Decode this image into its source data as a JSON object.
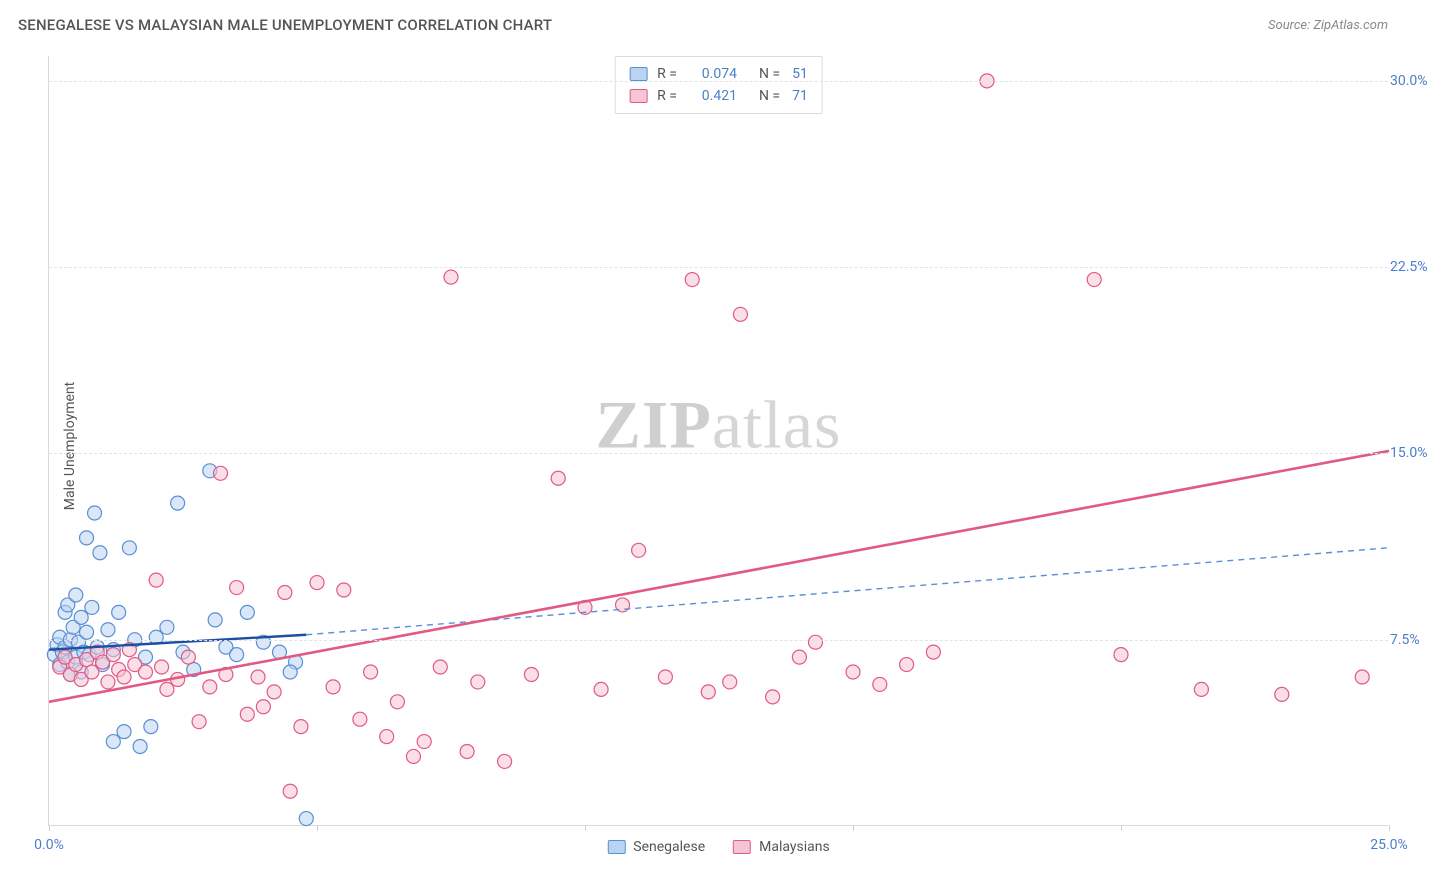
{
  "header": {
    "title": "SENEGALESE VS MALAYSIAN MALE UNEMPLOYMENT CORRELATION CHART",
    "source_prefix": "Source: ",
    "source_name": "ZipAtlas.com"
  },
  "watermark": {
    "bold": "ZIP",
    "rest": "atlas"
  },
  "chart": {
    "type": "scatter",
    "ylabel": "Male Unemployment",
    "xlim": [
      0,
      25
    ],
    "ylim": [
      0,
      31
    ],
    "yticks": [
      7.5,
      15.0,
      22.5,
      30.0
    ],
    "ytick_labels": [
      "7.5%",
      "15.0%",
      "22.5%",
      "30.0%"
    ],
    "xticks": [
      0,
      5,
      10,
      15,
      20,
      25
    ],
    "xtick_labels": {
      "0": "0.0%",
      "25": "25.0%"
    },
    "grid_color": "#e3e3e3",
    "axis_color": "#d9d9d9",
    "background_color": "#ffffff",
    "tick_label_color": "#4a7fc9",
    "marker_radius": 7,
    "marker_stroke_width": 1.2,
    "series": [
      {
        "name": "Senegalese",
        "fill": "#b9d3f0",
        "stroke": "#5a8fd6",
        "fill_opacity": 0.55,
        "R": "0.074",
        "N": "51",
        "trend_solid": {
          "x1": 0,
          "y1": 7.1,
          "x2": 4.8,
          "y2": 7.7,
          "color": "#1c4fa3",
          "width": 2.4
        },
        "trend_dashed": {
          "x1": 4.8,
          "y1": 7.7,
          "x2": 25,
          "y2": 11.2,
          "color": "#5a8fd6",
          "width": 1.4,
          "dash": "6,5"
        },
        "points": [
          [
            0.1,
            6.9
          ],
          [
            0.15,
            7.3
          ],
          [
            0.2,
            6.5
          ],
          [
            0.2,
            7.6
          ],
          [
            0.25,
            7.0
          ],
          [
            0.3,
            8.6
          ],
          [
            0.3,
            7.2
          ],
          [
            0.35,
            6.6
          ],
          [
            0.35,
            8.9
          ],
          [
            0.4,
            6.1
          ],
          [
            0.4,
            7.5
          ],
          [
            0.45,
            8.0
          ],
          [
            0.5,
            9.3
          ],
          [
            0.5,
            6.8
          ],
          [
            0.55,
            7.4
          ],
          [
            0.6,
            8.4
          ],
          [
            0.6,
            6.2
          ],
          [
            0.65,
            7.0
          ],
          [
            0.7,
            11.6
          ],
          [
            0.7,
            7.8
          ],
          [
            0.75,
            6.9
          ],
          [
            0.8,
            8.8
          ],
          [
            0.85,
            12.6
          ],
          [
            0.9,
            7.2
          ],
          [
            0.95,
            11.0
          ],
          [
            1.0,
            6.5
          ],
          [
            1.1,
            7.9
          ],
          [
            1.2,
            3.4
          ],
          [
            1.2,
            7.1
          ],
          [
            1.3,
            8.6
          ],
          [
            1.4,
            3.8
          ],
          [
            1.5,
            11.2
          ],
          [
            1.6,
            7.5
          ],
          [
            1.7,
            3.2
          ],
          [
            1.8,
            6.8
          ],
          [
            1.9,
            4.0
          ],
          [
            2.0,
            7.6
          ],
          [
            2.2,
            8.0
          ],
          [
            2.4,
            13.0
          ],
          [
            2.5,
            7.0
          ],
          [
            2.7,
            6.3
          ],
          [
            3.0,
            14.3
          ],
          [
            3.1,
            8.3
          ],
          [
            3.3,
            7.2
          ],
          [
            3.5,
            6.9
          ],
          [
            3.7,
            8.6
          ],
          [
            4.0,
            7.4
          ],
          [
            4.3,
            7.0
          ],
          [
            4.6,
            6.6
          ],
          [
            4.8,
            0.3
          ],
          [
            4.5,
            6.2
          ]
        ]
      },
      {
        "name": "Malaysians",
        "fill": "#f5c5d4",
        "stroke": "#e15a84",
        "fill_opacity": 0.55,
        "R": "0.421",
        "N": "71",
        "trend_solid": {
          "x1": 0,
          "y1": 5.0,
          "x2": 25,
          "y2": 15.1,
          "color": "#e15a84",
          "width": 2.6
        },
        "points": [
          [
            0.2,
            6.4
          ],
          [
            0.3,
            6.8
          ],
          [
            0.4,
            6.1
          ],
          [
            0.5,
            6.5
          ],
          [
            0.6,
            5.9
          ],
          [
            0.7,
            6.7
          ],
          [
            0.8,
            6.2
          ],
          [
            0.9,
            7.0
          ],
          [
            1.0,
            6.6
          ],
          [
            1.1,
            5.8
          ],
          [
            1.2,
            6.9
          ],
          [
            1.3,
            6.3
          ],
          [
            1.4,
            6.0
          ],
          [
            1.5,
            7.1
          ],
          [
            1.6,
            6.5
          ],
          [
            1.8,
            6.2
          ],
          [
            2.0,
            9.9
          ],
          [
            2.1,
            6.4
          ],
          [
            2.2,
            5.5
          ],
          [
            2.4,
            5.9
          ],
          [
            2.6,
            6.8
          ],
          [
            2.8,
            4.2
          ],
          [
            3.0,
            5.6
          ],
          [
            3.2,
            14.2
          ],
          [
            3.3,
            6.1
          ],
          [
            3.5,
            9.6
          ],
          [
            3.7,
            4.5
          ],
          [
            3.9,
            6.0
          ],
          [
            4.0,
            4.8
          ],
          [
            4.2,
            5.4
          ],
          [
            4.4,
            9.4
          ],
          [
            4.5,
            1.4
          ],
          [
            4.7,
            4.0
          ],
          [
            5.0,
            9.8
          ],
          [
            5.3,
            5.6
          ],
          [
            5.5,
            9.5
          ],
          [
            5.8,
            4.3
          ],
          [
            6.0,
            6.2
          ],
          [
            6.3,
            3.6
          ],
          [
            6.5,
            5.0
          ],
          [
            6.8,
            2.8
          ],
          [
            7.0,
            3.4
          ],
          [
            7.3,
            6.4
          ],
          [
            7.5,
            22.1
          ],
          [
            7.8,
            3.0
          ],
          [
            8.0,
            5.8
          ],
          [
            8.5,
            2.6
          ],
          [
            9.0,
            6.1
          ],
          [
            9.5,
            14.0
          ],
          [
            10.0,
            8.8
          ],
          [
            10.3,
            5.5
          ],
          [
            10.7,
            8.9
          ],
          [
            11.0,
            11.1
          ],
          [
            11.5,
            6.0
          ],
          [
            12.0,
            22.0
          ],
          [
            12.3,
            5.4
          ],
          [
            12.7,
            5.8
          ],
          [
            12.9,
            20.6
          ],
          [
            13.5,
            5.2
          ],
          [
            14.0,
            6.8
          ],
          [
            14.3,
            7.4
          ],
          [
            15.0,
            6.2
          ],
          [
            15.5,
            5.7
          ],
          [
            16.0,
            6.5
          ],
          [
            16.5,
            7.0
          ],
          [
            17.5,
            30.0
          ],
          [
            19.5,
            22.0
          ],
          [
            20.0,
            6.9
          ],
          [
            21.5,
            5.5
          ],
          [
            23.0,
            5.3
          ],
          [
            24.5,
            6.0
          ]
        ]
      }
    ],
    "legend_bottom": [
      {
        "label": "Senegalese",
        "fill": "#b9d3f0",
        "stroke": "#5a8fd6"
      },
      {
        "label": "Malaysians",
        "fill": "#f5c5d4",
        "stroke": "#e15a84"
      }
    ]
  }
}
